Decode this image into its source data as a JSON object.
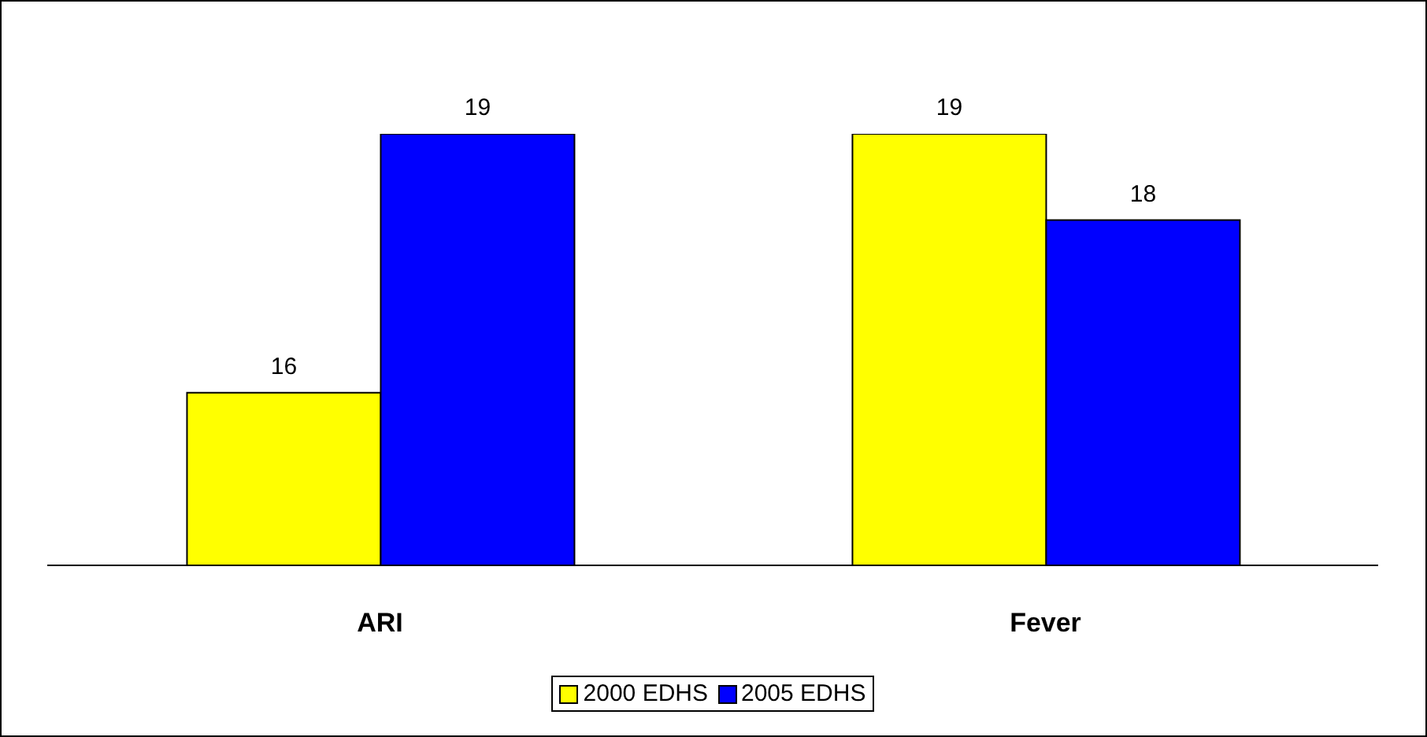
{
  "chart_data": {
    "type": "bar",
    "categories": [
      "ARI",
      "Fever"
    ],
    "series": [
      {
        "name": "2000 EDHS",
        "color": "#ffff00",
        "values": [
          16,
          19
        ]
      },
      {
        "name": "2005 EDHS",
        "color": "#0000ff",
        "values": [
          19,
          18
        ]
      }
    ],
    "ylim": [
      14,
      19
    ],
    "tick_labels": "x",
    "data_labels": true,
    "legend": "bottom",
    "grid": false
  }
}
